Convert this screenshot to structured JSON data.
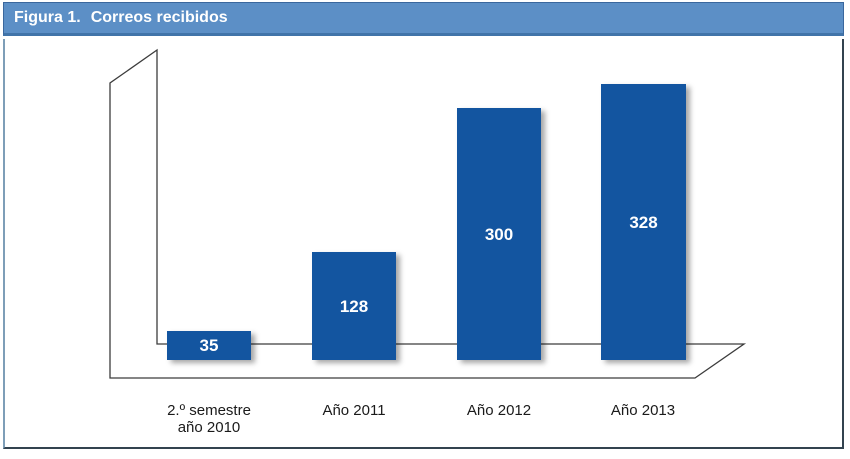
{
  "header": {
    "figure_label": "Figura 1.",
    "title": "Correos recibidos"
  },
  "colors": {
    "bar": "#1355A0",
    "header_bg": "#5C8FC6",
    "header_border": "#3A679D",
    "header_underline": "#4174A9",
    "frame_dark": "#33434F",
    "frame_light": "#7E9EB8",
    "axis_line": "#3C3C3C",
    "value_label": "#FFFFFF",
    "category_label": "#1A1A1A"
  },
  "chart_data": {
    "type": "bar",
    "title": "Figura 1. Correos recibidos",
    "categories": [
      "2.º semestre\naño 2010",
      "Año 2011",
      "Año 2012",
      "Año 2013"
    ],
    "values": [
      35,
      128,
      300,
      328
    ],
    "xlabel": "",
    "ylabel": "",
    "ylim": [
      0,
      350
    ],
    "grid": false,
    "legend": false,
    "style": "pseudo-3D axis frame, flat dark-blue bars with drop shadows, white value labels centered inside bars"
  }
}
